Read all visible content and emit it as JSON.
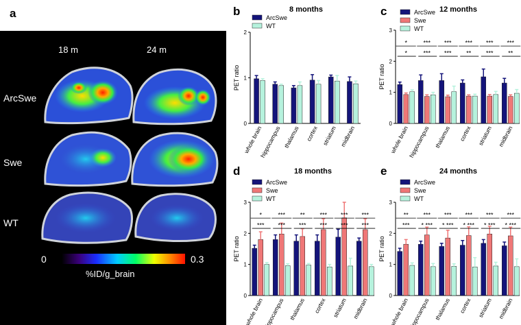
{
  "colors": {
    "ArcSwe": "#14147a",
    "Swe": "#ef7777",
    "WT": "#b6f2dd",
    "image_bg": "#000000"
  },
  "panel_a": {
    "letter": "a",
    "columns": [
      "18 m",
      "24 m"
    ],
    "rows": [
      "ArcSwe",
      "Swe",
      "WT"
    ],
    "scale_min": "0",
    "scale_max": "0.3",
    "scale_label": "%ID/g_brain"
  },
  "chart_data": [
    {
      "letter": "b",
      "type": "bar",
      "title": "8 months",
      "ylabel": "PET ratio",
      "ylim": [
        0,
        2
      ],
      "yticks": [
        0,
        1,
        2
      ],
      "categories": [
        "whole brain",
        "hippocampus",
        "thalamus",
        "cortex",
        "striatum",
        "midbrain"
      ],
      "series": [
        {
          "name": "ArcSwe",
          "values": [
            0.98,
            0.86,
            0.78,
            0.95,
            1.02,
            0.92
          ],
          "errors": [
            0.07,
            0.05,
            0.05,
            0.12,
            0.04,
            0.1
          ]
        },
        {
          "name": "WT",
          "values": [
            0.94,
            0.83,
            0.83,
            0.86,
            0.93,
            0.87
          ],
          "errors": [
            0.04,
            0.03,
            0.08,
            0.08,
            0.12,
            0.06
          ]
        }
      ],
      "significance": []
    },
    {
      "letter": "c",
      "type": "bar",
      "title": "12 months",
      "ylabel": "PET ratio",
      "ylim": [
        0,
        3
      ],
      "yticks": [
        0,
        1,
        2,
        3
      ],
      "categories": [
        "whole brain",
        "hippocampus",
        "thalamus",
        "cortex",
        "striatum",
        "midbrain"
      ],
      "series": [
        {
          "name": "ArcSwe",
          "values": [
            1.25,
            1.38,
            1.38,
            1.3,
            1.5,
            1.3
          ],
          "errors": [
            0.08,
            0.18,
            0.22,
            0.1,
            0.25,
            0.15
          ]
        },
        {
          "name": "Swe",
          "values": [
            0.93,
            0.87,
            0.86,
            0.88,
            0.88,
            0.87
          ],
          "errors": [
            0.05,
            0.05,
            0.05,
            0.04,
            0.05,
            0.05
          ]
        },
        {
          "name": "WT",
          "values": [
            1.02,
            0.92,
            1.02,
            0.88,
            0.93,
            0.97
          ],
          "errors": [
            0.06,
            0.08,
            0.18,
            0.06,
            0.1,
            0.12
          ]
        }
      ],
      "significance": [
        {
          "category": 0,
          "upper": "*",
          "lower": "*"
        },
        {
          "category": 1,
          "upper": "***",
          "lower": "***"
        },
        {
          "category": 2,
          "upper": "***",
          "lower": "***"
        },
        {
          "category": 3,
          "upper": "***",
          "lower": "**"
        },
        {
          "category": 4,
          "upper": "***",
          "lower": "***"
        },
        {
          "category": 5,
          "upper": "***",
          "lower": "**"
        }
      ]
    },
    {
      "letter": "d",
      "type": "bar",
      "title": "18 months",
      "ylabel": "PET ratio",
      "ylim": [
        0,
        3
      ],
      "yticks": [
        0,
        1,
        2,
        3
      ],
      "categories": [
        "whole brain",
        "hippocampus",
        "thalamus",
        "cortex",
        "striatum",
        "midbrain"
      ],
      "series": [
        {
          "name": "ArcSwe",
          "values": [
            1.52,
            1.8,
            1.75,
            1.75,
            1.88,
            1.75
          ],
          "errors": [
            0.1,
            0.15,
            0.2,
            0.2,
            0.25,
            0.1
          ]
        },
        {
          "name": "Swe",
          "values": [
            1.8,
            1.98,
            1.9,
            2.12,
            2.5,
            2.12
          ],
          "errors": [
            0.25,
            0.35,
            0.25,
            0.35,
            0.5,
            0.35
          ]
        },
        {
          "name": "WT",
          "values": [
            1.0,
            0.96,
            0.98,
            0.92,
            0.95,
            0.93
          ],
          "errors": [
            0.06,
            0.06,
            0.05,
            0.08,
            0.25,
            0.07
          ]
        }
      ],
      "significance": [
        {
          "category": 0,
          "upper": "*",
          "lower": "***"
        },
        {
          "category": 1,
          "upper": "***",
          "lower": "***"
        },
        {
          "category": 2,
          "upper": "**",
          "lower": "***"
        },
        {
          "category": 3,
          "upper": "***",
          "lower": "***"
        },
        {
          "category": 4,
          "upper": "***",
          "lower": "***"
        },
        {
          "category": 5,
          "upper": "***",
          "lower": "***"
        }
      ]
    },
    {
      "letter": "e",
      "type": "bar",
      "title": "24 months",
      "ylabel": "PET ratio",
      "ylim": [
        0,
        3
      ],
      "yticks": [
        0,
        1,
        2,
        3
      ],
      "categories": [
        "whole brain",
        "hippocampus",
        "thalamus",
        "cortex",
        "striatum",
        "midbrain"
      ],
      "series": [
        {
          "name": "ArcSwe",
          "values": [
            1.42,
            1.65,
            1.58,
            1.62,
            1.68,
            1.6
          ],
          "errors": [
            0.1,
            0.1,
            0.1,
            0.15,
            0.12,
            0.12
          ]
        },
        {
          "name": "Swe",
          "values": [
            1.65,
            1.95,
            1.85,
            1.93,
            1.98,
            1.92
          ],
          "errors": [
            0.15,
            0.25,
            0.25,
            0.28,
            0.25,
            0.28
          ]
        },
        {
          "name": "WT",
          "values": [
            0.97,
            0.93,
            0.94,
            0.92,
            0.95,
            0.93
          ],
          "errors": [
            0.08,
            0.1,
            0.08,
            0.3,
            0.12,
            0.25
          ]
        }
      ],
      "significance": [
        {
          "category": 0,
          "upper": "**",
          "lower": "***"
        },
        {
          "category": 1,
          "upper": "***",
          "lower": "* ***"
        },
        {
          "category": 2,
          "upper": "***",
          "lower": "* ***"
        },
        {
          "category": 3,
          "upper": "***",
          "lower": "* ***"
        },
        {
          "category": 4,
          "upper": "***",
          "lower": "* ***"
        },
        {
          "category": 5,
          "upper": "***",
          "lower": "* ***"
        }
      ]
    }
  ]
}
